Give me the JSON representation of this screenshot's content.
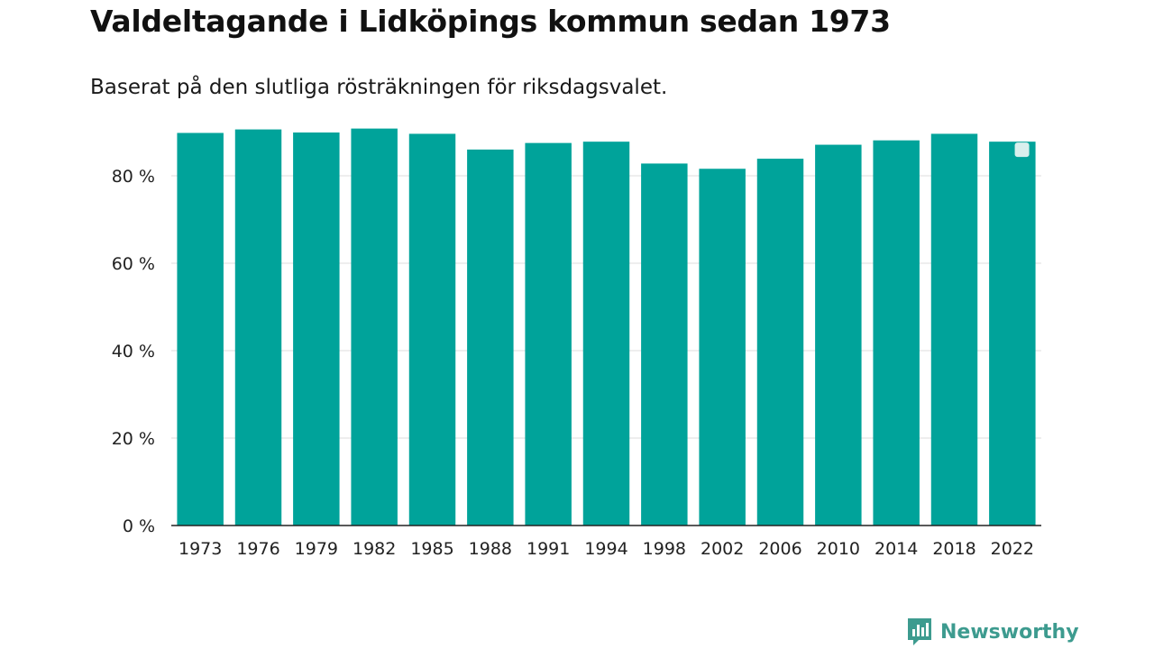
{
  "chart_data": {
    "type": "bar",
    "title": "Valdeltagande i Lidköpings kommun sedan 1973",
    "subtitle": "Baserat på den slutliga rösträkningen för riksdagsvalet.",
    "xlabel": "",
    "ylabel": "",
    "ylim": [
      0,
      100
    ],
    "yticks": [
      0,
      20,
      40,
      60,
      80
    ],
    "ytick_labels": [
      "0 %",
      "20 %",
      "40 %",
      "60 %",
      "80 %"
    ],
    "categories": [
      "1973",
      "1976",
      "1979",
      "1982",
      "1985",
      "1988",
      "1991",
      "1994",
      "1998",
      "2002",
      "2006",
      "2010",
      "2014",
      "2018",
      "2022"
    ],
    "values": [
      89.8,
      90.6,
      89.9,
      90.8,
      89.6,
      86.0,
      87.5,
      87.8,
      82.8,
      81.6,
      83.9,
      87.1,
      88.1,
      89.6,
      87.8
    ],
    "grid": true,
    "bar_color": "#00a39a"
  },
  "branding": {
    "name": "Newsworthy",
    "color": "#3d9b8f",
    "icon": "newsworthy-logo-icon"
  }
}
